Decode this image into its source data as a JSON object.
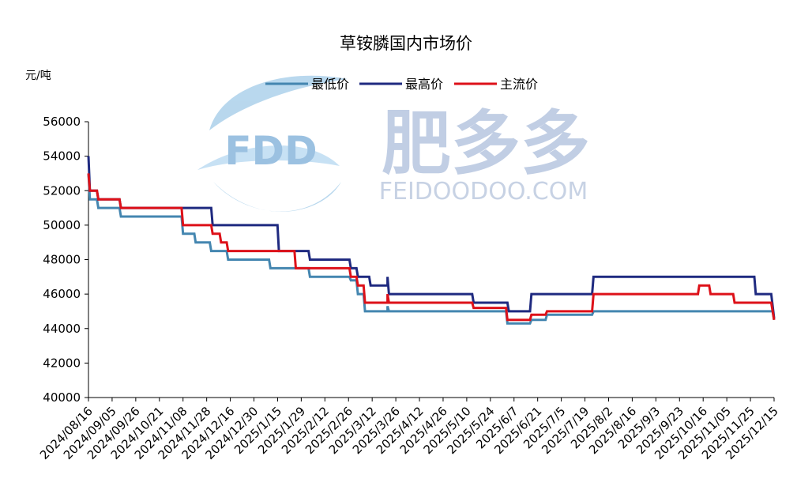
{
  "watermark": {
    "logo_text": "FDD",
    "brand_cn": "肥多多",
    "brand_en": "FEIDOODOO.COM"
  },
  "chart_data": {
    "type": "line",
    "title": "草铵膦国内市场价",
    "ylabel": "元/吨",
    "xlabel": "",
    "ylim": [
      40000,
      56000
    ],
    "yticks": [
      40000,
      42000,
      44000,
      46000,
      48000,
      50000,
      52000,
      54000,
      56000
    ],
    "xrange": [
      "2024-08-16",
      "2025-12-15"
    ],
    "xtick_labels": [
      "2024/08/16",
      "2024/09/05",
      "2024/09/26",
      "2024/10/21",
      "2024/11/08",
      "2024/11/28",
      "2024/12/16",
      "2024/12/30",
      "2025/1/15",
      "2025/1/29",
      "2025/2/12",
      "2025/2/26",
      "2025/3/12",
      "2025/3/26",
      "2025/4/12",
      "2025/4/26",
      "2025/5/10",
      "2025/5/24",
      "2025/6/7",
      "2025/6/21",
      "2025/7/5",
      "2025/7/19",
      "2025/8/2",
      "2025/8/16",
      "2025/9/3",
      "2025/9/23",
      "2025/10/16",
      "2025/11/05",
      "2025/11/25",
      "2025/12/15"
    ],
    "legend_position": "top",
    "grid": false,
    "series": [
      {
        "name": "最低价",
        "color": "#4486b0",
        "points": [
          [
            "2024-08-16",
            53000
          ],
          [
            "2024-08-17",
            51500
          ],
          [
            "2024-08-22",
            51500
          ],
          [
            "2024-08-23",
            51000
          ],
          [
            "2024-09-07",
            51000
          ],
          [
            "2024-09-08",
            50500
          ],
          [
            "2024-10-21",
            50500
          ],
          [
            "2024-10-22",
            49500
          ],
          [
            "2024-10-30",
            49500
          ],
          [
            "2024-10-31",
            49000
          ],
          [
            "2024-11-10",
            49000
          ],
          [
            "2024-11-11",
            48500
          ],
          [
            "2024-11-22",
            48500
          ],
          [
            "2024-11-23",
            48000
          ],
          [
            "2024-12-22",
            48000
          ],
          [
            "2024-12-23",
            47500
          ],
          [
            "2025-01-19",
            47500
          ],
          [
            "2025-01-20",
            47000
          ],
          [
            "2025-02-17",
            47000
          ],
          [
            "2025-02-18",
            46800
          ],
          [
            "2025-02-22",
            46800
          ],
          [
            "2025-02-23",
            46000
          ],
          [
            "2025-02-27",
            46000
          ],
          [
            "2025-02-28",
            45000
          ],
          [
            "2025-03-16",
            45000
          ],
          [
            "2025-03-16",
            45300
          ],
          [
            "2025-03-17",
            45000
          ],
          [
            "2025-05-24",
            45000
          ],
          [
            "2025-06-08",
            45000
          ],
          [
            "2025-06-09",
            44300
          ],
          [
            "2025-06-25",
            44300
          ],
          [
            "2025-06-26",
            44500
          ],
          [
            "2025-07-06",
            44500
          ],
          [
            "2025-07-07",
            44800
          ],
          [
            "2025-08-08",
            44800
          ],
          [
            "2025-08-09",
            45000
          ],
          [
            "2025-12-14",
            45000
          ],
          [
            "2025-12-15",
            44500
          ]
        ]
      },
      {
        "name": "最高价",
        "color": "#1f2a80",
        "points": [
          [
            "2024-08-16",
            54000
          ],
          [
            "2024-08-17",
            52000
          ],
          [
            "2024-08-22",
            52000
          ],
          [
            "2024-08-23",
            51500
          ],
          [
            "2024-09-07",
            51500
          ],
          [
            "2024-09-08",
            51000
          ],
          [
            "2024-11-11",
            51000
          ],
          [
            "2024-11-12",
            50000
          ],
          [
            "2024-12-28",
            50000
          ],
          [
            "2024-12-29",
            48500
          ],
          [
            "2025-01-19",
            48500
          ],
          [
            "2025-01-20",
            48000
          ],
          [
            "2025-02-17",
            48000
          ],
          [
            "2025-02-18",
            47500
          ],
          [
            "2025-02-22",
            47500
          ],
          [
            "2025-02-23",
            47000
          ],
          [
            "2025-03-03",
            47000
          ],
          [
            "2025-03-04",
            46500
          ],
          [
            "2025-03-16",
            46500
          ],
          [
            "2025-03-16",
            47000
          ],
          [
            "2025-03-17",
            46000
          ],
          [
            "2025-05-15",
            46000
          ],
          [
            "2025-05-16",
            45500
          ],
          [
            "2025-06-09",
            45500
          ],
          [
            "2025-06-10",
            45000
          ],
          [
            "2025-06-25",
            45000
          ],
          [
            "2025-06-26",
            46000
          ],
          [
            "2025-08-08",
            46000
          ],
          [
            "2025-08-09",
            47000
          ],
          [
            "2025-12-01",
            47000
          ],
          [
            "2025-12-02",
            46000
          ],
          [
            "2025-12-13",
            46000
          ],
          [
            "2025-12-15",
            44600
          ]
        ]
      },
      {
        "name": "主流价",
        "color": "#dd1119",
        "points": [
          [
            "2024-08-16",
            53000
          ],
          [
            "2024-08-17",
            52000
          ],
          [
            "2024-08-22",
            52000
          ],
          [
            "2024-08-23",
            51500
          ],
          [
            "2024-09-07",
            51500
          ],
          [
            "2024-09-08",
            51000
          ],
          [
            "2024-10-21",
            51000
          ],
          [
            "2024-10-22",
            50000
          ],
          [
            "2024-11-11",
            50000
          ],
          [
            "2024-11-12",
            49500
          ],
          [
            "2024-11-17",
            49500
          ],
          [
            "2024-11-18",
            49000
          ],
          [
            "2024-11-22",
            49000
          ],
          [
            "2024-11-23",
            48500
          ],
          [
            "2025-01-09",
            48500
          ],
          [
            "2025-01-10",
            47500
          ],
          [
            "2025-02-17",
            47500
          ],
          [
            "2025-02-18",
            47000
          ],
          [
            "2025-02-22",
            47000
          ],
          [
            "2025-02-23",
            46500
          ],
          [
            "2025-02-27",
            46500
          ],
          [
            "2025-02-28",
            45500
          ],
          [
            "2025-03-16",
            45500
          ],
          [
            "2025-03-16",
            46000
          ],
          [
            "2025-03-17",
            45500
          ],
          [
            "2025-05-15",
            45500
          ],
          [
            "2025-05-16",
            45200
          ],
          [
            "2025-06-08",
            45200
          ],
          [
            "2025-06-09",
            44500
          ],
          [
            "2025-06-25",
            44500
          ],
          [
            "2025-06-26",
            44800
          ],
          [
            "2025-07-06",
            44800
          ],
          [
            "2025-07-07",
            45000
          ],
          [
            "2025-08-08",
            45000
          ],
          [
            "2025-08-09",
            46000
          ],
          [
            "2025-10-22",
            46000
          ],
          [
            "2025-10-23",
            46500
          ],
          [
            "2025-10-30",
            46500
          ],
          [
            "2025-10-31",
            46000
          ],
          [
            "2025-11-16",
            46000
          ],
          [
            "2025-11-17",
            45500
          ],
          [
            "2025-12-13",
            45500
          ],
          [
            "2025-12-15",
            44500
          ]
        ]
      }
    ]
  }
}
